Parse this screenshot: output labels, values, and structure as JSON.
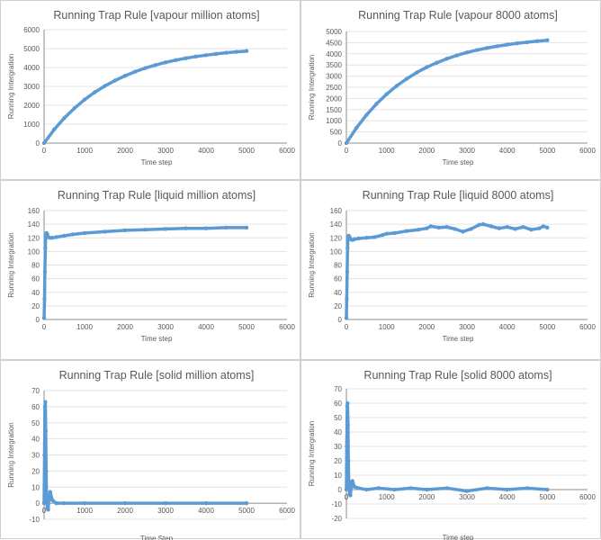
{
  "chart_data": [
    {
      "type": "line",
      "title": "Running Trap Rule [vapour million atoms]",
      "xlabel": "Time step",
      "ylabel": "Running Intergration",
      "xlim": [
        0,
        6000
      ],
      "ylim": [
        0,
        6000
      ],
      "xticks": [
        0,
        1000,
        2000,
        3000,
        4000,
        5000,
        6000
      ],
      "yticks": [
        0,
        1000,
        2000,
        3000,
        4000,
        5000,
        6000
      ],
      "series": [
        {
          "name": "Running Trap Rule",
          "color": "#5b9bd5",
          "x": [
            0,
            250,
            500,
            750,
            1000,
            1250,
            1500,
            1750,
            2000,
            2250,
            2500,
            2750,
            3000,
            3250,
            3500,
            3750,
            4000,
            4250,
            4500,
            4750,
            5000
          ],
          "y": [
            0,
            720,
            1330,
            1850,
            2300,
            2690,
            3020,
            3310,
            3560,
            3780,
            3970,
            4130,
            4270,
            4390,
            4490,
            4580,
            4650,
            4720,
            4780,
            4830,
            4870
          ]
        }
      ]
    },
    {
      "type": "line",
      "title": "Running Trap Rule [vapour 8000 atoms]",
      "xlabel": "Time step",
      "ylabel": "Running Intergration",
      "xlim": [
        0,
        6000
      ],
      "ylim": [
        0,
        5000
      ],
      "xticks": [
        0,
        1000,
        2000,
        3000,
        4000,
        5000,
        6000
      ],
      "yticks": [
        0,
        500,
        1000,
        1500,
        2000,
        2500,
        3000,
        3500,
        4000,
        4500,
        5000
      ],
      "series": [
        {
          "name": "Running Trap Rule",
          "color": "#5b9bd5",
          "x": [
            0,
            250,
            500,
            750,
            1000,
            1250,
            1500,
            1750,
            2000,
            2250,
            2500,
            2750,
            3000,
            3250,
            3500,
            3750,
            4000,
            4250,
            4500,
            4750,
            5000
          ],
          "y": [
            0,
            680,
            1260,
            1760,
            2190,
            2560,
            2880,
            3160,
            3400,
            3600,
            3780,
            3930,
            4060,
            4170,
            4260,
            4340,
            4410,
            4470,
            4520,
            4570,
            4610
          ]
        }
      ]
    },
    {
      "type": "line",
      "title": "Running Trap Rule [liquid million atoms]",
      "xlabel": "Time step",
      "ylabel": "Running Intergration",
      "xlim": [
        0,
        6000
      ],
      "ylim": [
        0,
        160
      ],
      "xticks": [
        0,
        1000,
        2000,
        3000,
        4000,
        5000,
        6000
      ],
      "yticks": [
        0,
        20,
        40,
        60,
        80,
        100,
        120,
        140,
        160
      ],
      "series": [
        {
          "name": "Running Trap Rule",
          "color": "#5b9bd5",
          "x": [
            0,
            10,
            20,
            30,
            40,
            60,
            80,
            100,
            150,
            200,
            300,
            500,
            700,
            1000,
            1500,
            2000,
            2500,
            3000,
            3500,
            4000,
            4500,
            5000
          ],
          "y": [
            2,
            30,
            70,
            105,
            122,
            127,
            125,
            121,
            120,
            120,
            121,
            123,
            125,
            127,
            129,
            131,
            132,
            133,
            134,
            134,
            135,
            135
          ]
        }
      ]
    },
    {
      "type": "line",
      "title": "Running Trap Rule [liquid 8000 atoms]",
      "xlabel": "Time step",
      "ylabel": "Running Intergration",
      "xlim": [
        0,
        6000
      ],
      "ylim": [
        0,
        160
      ],
      "xticks": [
        0,
        1000,
        2000,
        3000,
        4000,
        5000,
        6000
      ],
      "yticks": [
        0,
        20,
        40,
        60,
        80,
        100,
        120,
        140,
        160
      ],
      "series": [
        {
          "name": "Running Trap Rule",
          "color": "#5b9bd5",
          "x": [
            0,
            10,
            20,
            30,
            40,
            60,
            80,
            100,
            150,
            200,
            300,
            500,
            700,
            900,
            1000,
            1200,
            1500,
            1800,
            2000,
            2100,
            2300,
            2500,
            2700,
            2900,
            3100,
            3300,
            3400,
            3600,
            3800,
            4000,
            4200,
            4400,
            4600,
            4800,
            4900,
            5000
          ],
          "y": [
            2,
            30,
            70,
            105,
            120,
            123,
            121,
            118,
            117,
            118,
            119,
            120,
            121,
            124,
            126,
            127,
            130,
            132,
            134,
            137,
            135,
            136,
            133,
            129,
            133,
            139,
            140,
            137,
            134,
            136,
            133,
            136,
            132,
            134,
            137,
            135
          ]
        }
      ]
    },
    {
      "type": "line",
      "title": "Running Trap Rule [solid million atoms]",
      "xlabel": "Time Step",
      "ylabel": "Running Intergration",
      "xlim": [
        0,
        6000
      ],
      "ylim": [
        -10,
        70
      ],
      "xticks": [
        0,
        1000,
        2000,
        3000,
        4000,
        5000,
        6000
      ],
      "yticks": [
        -10,
        0,
        10,
        20,
        30,
        40,
        50,
        60,
        70
      ],
      "series": [
        {
          "name": "Running Trap Rule",
          "color": "#5b9bd5",
          "x": [
            0,
            10,
            20,
            30,
            40,
            50,
            60,
            80,
            100,
            120,
            150,
            200,
            300,
            500,
            1000,
            2000,
            3000,
            4000,
            5000
          ],
          "y": [
            0,
            30,
            60,
            63,
            45,
            20,
            5,
            -3,
            -4,
            3,
            7,
            2,
            0,
            0,
            0,
            0,
            0,
            0,
            0
          ]
        }
      ]
    },
    {
      "type": "line",
      "title": "Running Trap Rule [solid 8000 atoms]",
      "xlabel": "Time step",
      "ylabel": "Running Intergration",
      "xlim": [
        0,
        6000
      ],
      "ylim": [
        -20,
        70
      ],
      "xticks": [
        0,
        1000,
        2000,
        3000,
        4000,
        5000,
        6000
      ],
      "yticks": [
        -20,
        -10,
        0,
        10,
        20,
        30,
        40,
        50,
        60,
        70
      ],
      "series": [
        {
          "name": "Running Trap Rule",
          "color": "#5b9bd5",
          "x": [
            0,
            10,
            20,
            30,
            40,
            50,
            60,
            80,
            100,
            120,
            150,
            200,
            300,
            500,
            800,
            1200,
            1600,
            2000,
            2500,
            3000,
            3500,
            4000,
            4500,
            5000
          ],
          "y": [
            0,
            30,
            58,
            60,
            45,
            20,
            5,
            -3,
            -4,
            3,
            6,
            2,
            1,
            0,
            1,
            0,
            1,
            0,
            1,
            -1,
            1,
            0,
            1,
            0
          ]
        }
      ]
    }
  ]
}
